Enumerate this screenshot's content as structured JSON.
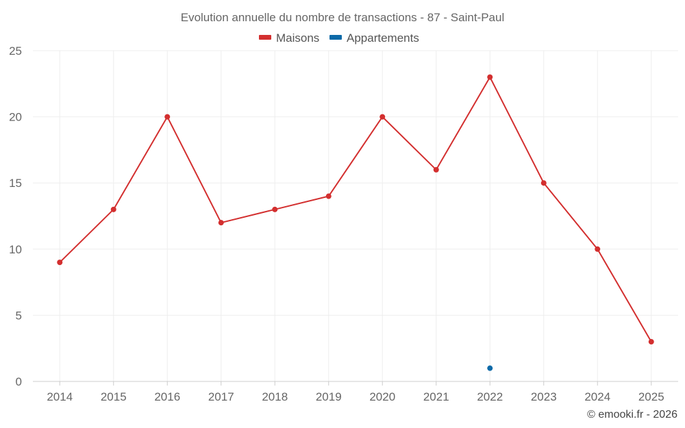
{
  "chart_data": {
    "type": "line",
    "title": "Evolution annuelle du nombre de transactions - 87 - Saint-Paul",
    "categories": [
      "2014",
      "2015",
      "2016",
      "2017",
      "2018",
      "2019",
      "2020",
      "2021",
      "2022",
      "2023",
      "2024",
      "2025"
    ],
    "series": [
      {
        "name": "Maisons",
        "color": "#d32f2f",
        "values": [
          9,
          13,
          20,
          12,
          13,
          14,
          20,
          16,
          23,
          15,
          10,
          3
        ]
      },
      {
        "name": "Appartements",
        "color": "#0d6aa8",
        "values": [
          null,
          null,
          null,
          null,
          null,
          null,
          null,
          null,
          1,
          null,
          null,
          null
        ]
      }
    ],
    "ylim": [
      0,
      25
    ],
    "yticks": [
      0,
      5,
      10,
      15,
      20,
      25
    ],
    "grid": true,
    "legend": "top-center",
    "xlabel": "",
    "ylabel": ""
  },
  "credit": "© emooki.fr - 2026"
}
